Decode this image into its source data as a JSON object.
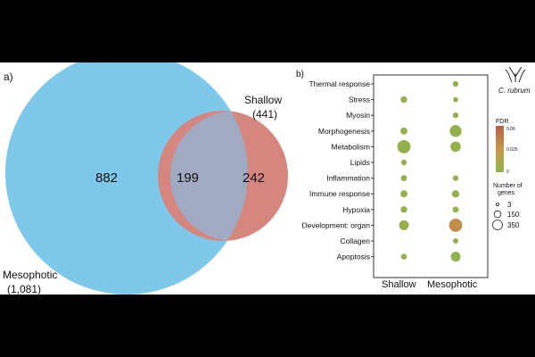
{
  "panel_labels": {
    "a": "a)",
    "b": "b)"
  },
  "chart_data": [
    {
      "type": "venn",
      "sets": [
        {
          "name": "Mesophotic",
          "count_label": "(1,081)",
          "total": 1081,
          "color": "#7ec8ec"
        },
        {
          "name": "Shallow",
          "count_label": "(441)",
          "total": 441,
          "color": "#d4867f"
        }
      ],
      "regions": {
        "mesophotic_only": "882",
        "overlap": "199",
        "shallow_only": "242"
      },
      "overlap_color": "#a2aac2"
    },
    {
      "type": "scatter",
      "subtype": "bubble",
      "categories_x": [
        "Shallow",
        "Mesophotic"
      ],
      "categories_y": [
        "Thermal response",
        "Stress",
        "Myosin",
        "Morphogenesis",
        "Metabolism",
        "Lipids",
        "Inflammation",
        "Immune response",
        "Hypoxia",
        "Development: organ",
        "Collagen",
        "Apoptosis"
      ],
      "points": [
        {
          "x": "Shallow",
          "y": "Stress",
          "genes": 40,
          "fdr": 0.002
        },
        {
          "x": "Shallow",
          "y": "Morphogenesis",
          "genes": 50,
          "fdr": 0.002
        },
        {
          "x": "Shallow",
          "y": "Metabolism",
          "genes": 350,
          "fdr": 0.002
        },
        {
          "x": "Shallow",
          "y": "Lipids",
          "genes": 20,
          "fdr": 0.002
        },
        {
          "x": "Shallow",
          "y": "Inflammation",
          "genes": 30,
          "fdr": 0.002
        },
        {
          "x": "Shallow",
          "y": "Immune response",
          "genes": 50,
          "fdr": 0.002
        },
        {
          "x": "Shallow",
          "y": "Hypoxia",
          "genes": 40,
          "fdr": 0.002
        },
        {
          "x": "Shallow",
          "y": "Development: organ",
          "genes": 150,
          "fdr": 0.004
        },
        {
          "x": "Shallow",
          "y": "Apoptosis",
          "genes": 25,
          "fdr": 0.003
        },
        {
          "x": "Mesophotic",
          "y": "Thermal response",
          "genes": 20,
          "fdr": 0.003
        },
        {
          "x": "Mesophotic",
          "y": "Stress",
          "genes": 12,
          "fdr": 0.002
        },
        {
          "x": "Mesophotic",
          "y": "Myosin",
          "genes": 20,
          "fdr": 0.002
        },
        {
          "x": "Mesophotic",
          "y": "Morphogenesis",
          "genes": 260,
          "fdr": 0.002
        },
        {
          "x": "Mesophotic",
          "y": "Metabolism",
          "genes": 180,
          "fdr": 0.002
        },
        {
          "x": "Mesophotic",
          "y": "Inflammation",
          "genes": 20,
          "fdr": 0.002
        },
        {
          "x": "Mesophotic",
          "y": "Immune response",
          "genes": 60,
          "fdr": 0.002
        },
        {
          "x": "Mesophotic",
          "y": "Hypoxia",
          "genes": 30,
          "fdr": 0.002
        },
        {
          "x": "Mesophotic",
          "y": "Development: organ",
          "genes": 350,
          "fdr": 0.03
        },
        {
          "x": "Mesophotic",
          "y": "Collagen",
          "genes": 15,
          "fdr": 0.002
        },
        {
          "x": "Mesophotic",
          "y": "Apoptosis",
          "genes": 150,
          "fdr": 0.002
        }
      ],
      "color_scale": {
        "title": "FDR",
        "ticks": [
          "0.05",
          "0.025",
          "0"
        ],
        "colors": [
          "#b5624a",
          "#c49a4a",
          "#8fb34a"
        ]
      },
      "size_legend": {
        "title_line1": "Number of",
        "title_line2": "genes",
        "values": [
          "3",
          "150",
          "350"
        ]
      },
      "species_label": "C. rubrum"
    }
  ]
}
